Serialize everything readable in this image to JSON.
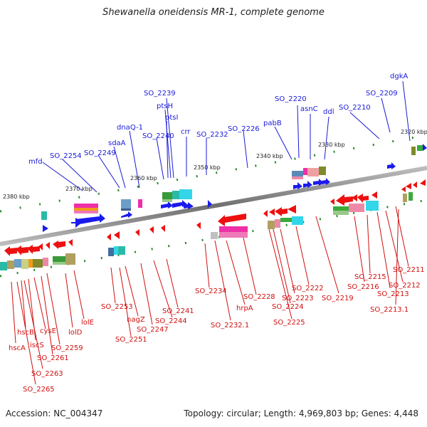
{
  "title": "Shewanella oneidensis MR-1, complete genome",
  "footer": {
    "accession": "Accession: NC_004347",
    "summary": "Topology: circular; Length: 4,969,803 bp; Genes: 4,448"
  },
  "colors": {
    "blue_label": "#1a1ad6",
    "red_label": "#d01010",
    "axis": "#777777",
    "tick": "#2a8a2a"
  },
  "scale_labels": [
    "2320 kbp",
    "2330 kbp",
    "2340 kbp",
    "2350 kbp",
    "2360 kbp",
    "2370 kbp",
    "2380 kbp"
  ],
  "top_genes": [
    "dgkA",
    "SO_2209",
    "SO_2210",
    "SO_2220",
    "asnC",
    "ddl",
    "pabB",
    "SO_2226",
    "SO_2232",
    "crr",
    "SO_2239",
    "ptsH",
    "ptsI",
    "SO_2240",
    "dnaQ-1",
    "sdaA",
    "SO_2249",
    "SO_2254",
    "mfd"
  ],
  "bottom_genes": [
    "SO_2211",
    "SO_2212",
    "SO_2213",
    "SO_2213.1",
    "SO_2215",
    "SO_2216",
    "SO_2219",
    "SO_2222",
    "SO_2223",
    "SO_2224",
    "SO_2225",
    "SO_2228",
    "hrpA",
    "SO_2232.1",
    "SO_2234",
    "SO_2241",
    "SO_2244",
    "SO_2247",
    "nagZ",
    "SO_2251",
    "SO_2253",
    "lolE",
    "lolD",
    "SO_2259",
    "SO_2261",
    "cysE",
    "iscS",
    "hscB",
    "hscA",
    "SO_2263",
    "SO_2265"
  ]
}
